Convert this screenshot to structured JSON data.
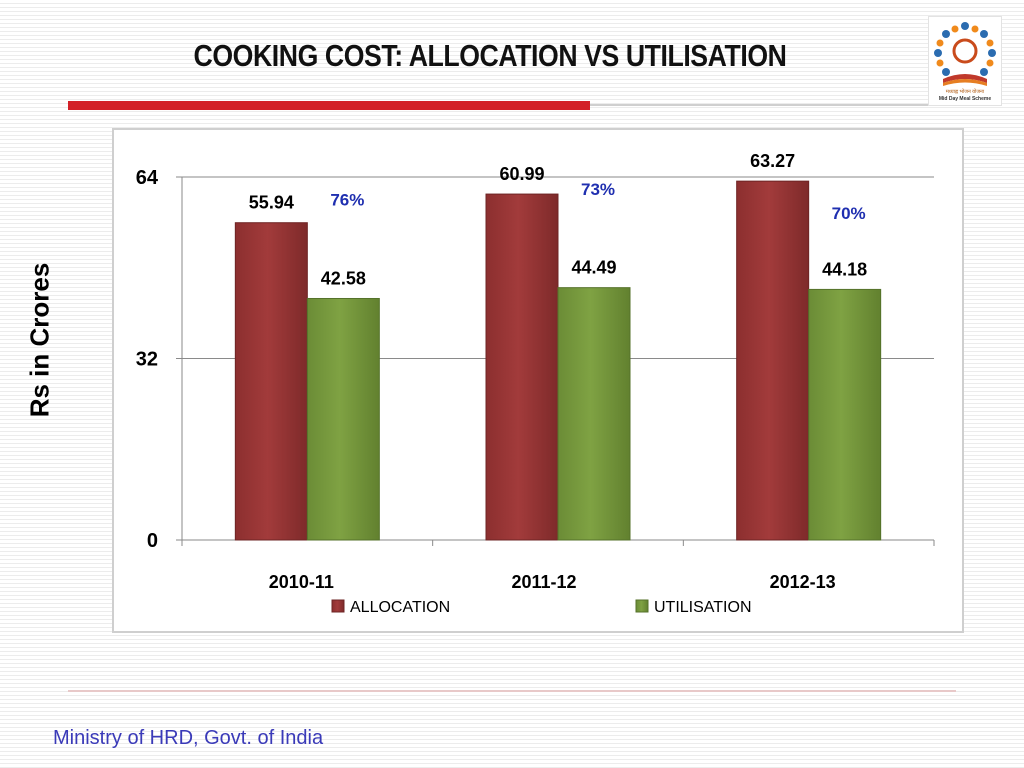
{
  "slide": {
    "title": "COOKING COST: ALLOCATION VS UTILISATION",
    "footer": "Ministry of HRD, Govt. of India",
    "logo_line1": "मध्याह्न भोजन योजना",
    "logo_line2": "Mid Day Meal Scheme"
  },
  "colors": {
    "title_rule": "#d32128",
    "allocation": "#a23b3b",
    "utilisation": "#7fa243",
    "percent_text": "#1f2fb0",
    "footer_text": "#3a3ab8"
  },
  "icons": {
    "logo": "mid-day-meal-logo"
  },
  "chart_data": {
    "type": "bar",
    "title": "",
    "xlabel": "",
    "ylabel": "Rs in Crores",
    "ylim": [
      0,
      64
    ],
    "yticks": [
      "0",
      "32",
      "64"
    ],
    "grid": true,
    "legend": "bottom",
    "categories": [
      "2010-11",
      "2011-12",
      "2012-13"
    ],
    "series": [
      {
        "name": "ALLOCATION",
        "values": [
          55.94,
          60.99,
          63.27
        ],
        "labels": [
          "55.94",
          "60.99",
          "63.27"
        ]
      },
      {
        "name": "UTILISATION",
        "values": [
          42.58,
          44.49,
          44.18
        ],
        "labels": [
          "42.58",
          "44.49",
          "44.18"
        ]
      }
    ],
    "annotations": [
      "76%",
      "73%",
      "70%"
    ]
  }
}
